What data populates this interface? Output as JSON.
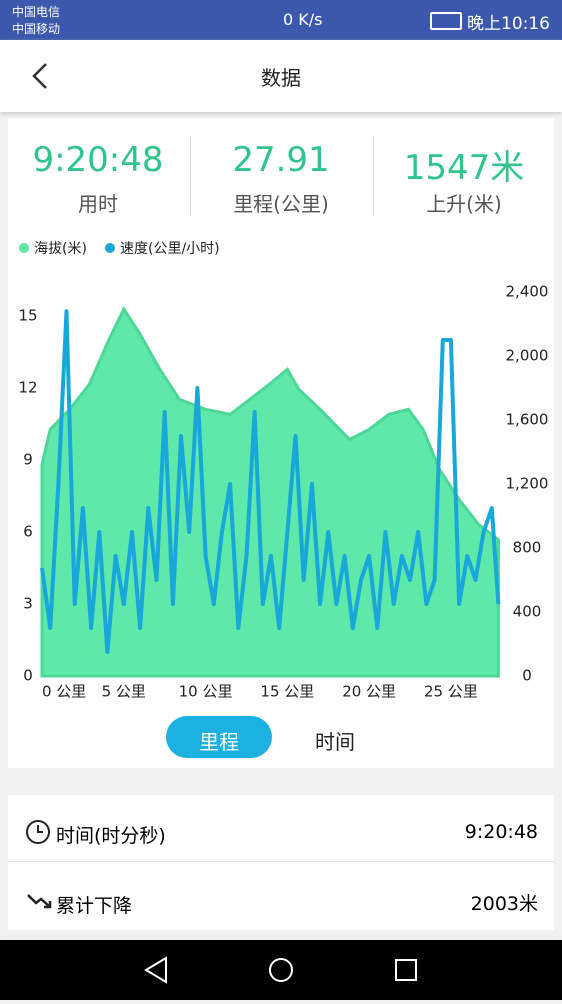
{
  "status_bar": {
    "carrier1": "中国电信",
    "carrier2": "中国移动",
    "speed": "0 K/s",
    "time": "晚上10:16"
  },
  "header": {
    "title": "数据"
  },
  "stats": [
    {
      "value": "9:20:48",
      "label": "用时"
    },
    {
      "value": "27.91",
      "label": "里程(公里)"
    },
    {
      "value": "1547米",
      "label": "上升(米)"
    }
  ],
  "chart_data": {
    "type": "line",
    "series": [
      {
        "name": "海拔(米)",
        "color": "#5ee8a9",
        "axis": "y2",
        "area": true,
        "x": [
          0,
          0.5,
          1.7,
          2.9,
          4.1,
          5,
          6,
          7.2,
          8.4,
          10,
          11.5,
          12.7,
          13.9,
          15,
          15.7,
          17,
          18.8,
          20,
          21.2,
          22.4,
          23.3,
          24.3,
          25.5,
          26.7,
          27.9
        ],
        "values": [
          1322,
          1541,
          1667,
          1823,
          2105,
          2293,
          2137,
          1917,
          1729,
          1667,
          1635,
          1729,
          1823,
          1917,
          1792,
          1667,
          1479,
          1541,
          1635,
          1667,
          1541,
          1291,
          1103,
          946,
          852
        ]
      },
      {
        "name": "速度(公里/小时)",
        "color": "#19a7d9",
        "x": [
          0,
          0.5,
          1,
          1.5,
          2,
          2.5,
          3,
          3.5,
          4,
          4.5,
          5,
          5.5,
          6,
          6.5,
          7,
          7.5,
          8,
          8.5,
          9,
          9.5,
          10,
          10.5,
          11,
          11.5,
          12,
          12.5,
          13,
          13.5,
          14,
          14.5,
          15,
          15.5,
          16,
          16.5,
          17,
          17.5,
          18,
          18.5,
          19,
          19.5,
          20,
          20.5,
          21,
          21.5,
          22,
          22.5,
          23,
          23.5,
          24,
          24.5,
          25,
          25.5,
          26,
          26.5,
          27,
          27.5,
          27.9
        ],
        "values": [
          4.5,
          2,
          8,
          15.2,
          3,
          7,
          2,
          6,
          1,
          5,
          3,
          6,
          2,
          7,
          4,
          11,
          3,
          10,
          6,
          12,
          5,
          3,
          6,
          8,
          2,
          5,
          11,
          3,
          5,
          2,
          6,
          10,
          4,
          8,
          3,
          6,
          3,
          5,
          2,
          4,
          5,
          2,
          6,
          3,
          5,
          4,
          6,
          3,
          4,
          14,
          14,
          3,
          5,
          4,
          6,
          7,
          3
        ]
      }
    ],
    "xlim": [
      0,
      28
    ],
    "xticks": [
      {
        "value": 0,
        "label": "0 公里"
      },
      {
        "value": 5,
        "label": "5 公里"
      },
      {
        "value": 10,
        "label": "10 公里"
      },
      {
        "value": 15,
        "label": "15 公里"
      },
      {
        "value": 20,
        "label": "20 公里"
      },
      {
        "value": 25,
        "label": "25 公里"
      }
    ],
    "ylim": [
      0,
      16
    ],
    "yticks": [
      0,
      3,
      6,
      9,
      12,
      15
    ],
    "y2lim": [
      0,
      2400
    ],
    "y2ticks": [
      0,
      400,
      800,
      {
        "value": 1200,
        "label": "1,200"
      },
      {
        "value": 1600,
        "label": "1,600"
      },
      {
        "value": 2000,
        "label": "2,000"
      },
      {
        "value": 2400,
        "label": "2,400"
      }
    ]
  },
  "toggle": [
    "里程",
    "时间"
  ],
  "rows": [
    {
      "label": "时间(时分秒)",
      "value": "9:20:48"
    },
    {
      "label": "累计下降",
      "value": "2003米"
    }
  ]
}
